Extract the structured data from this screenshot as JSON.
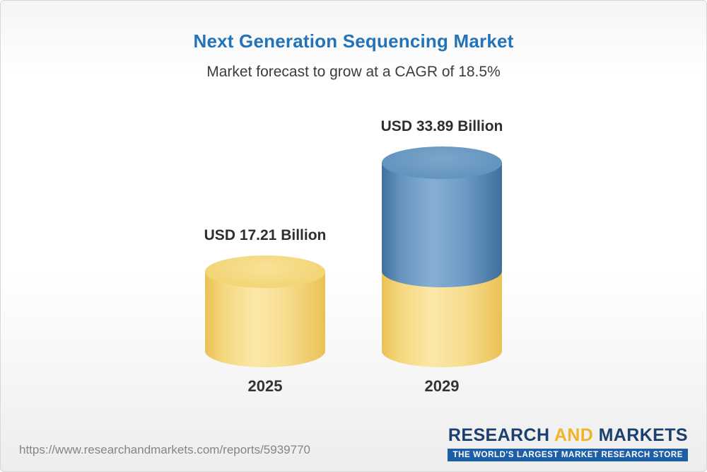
{
  "header": {
    "title": "Next Generation Sequencing Market",
    "subtitle": "Market forecast to grow at a CAGR of 18.5%"
  },
  "chart_data": {
    "type": "bar",
    "variant": "3d-cylinder",
    "categories": [
      "2025",
      "2029"
    ],
    "values": [
      17.21,
      33.89
    ],
    "value_labels": [
      "USD 17.21 Billion",
      "USD 33.89 Billion"
    ],
    "unit": "USD Billion",
    "cagr_pct": 18.5,
    "series_note": "2029 cylinder is stacked: yellow base equals 2025 value, blue top segment is forecast growth",
    "bar_colors": [
      "#f3d474",
      "#6193bd"
    ],
    "legend": "none",
    "grid": "off"
  },
  "footer": {
    "url": "https://www.researchandmarkets.com/reports/5939770",
    "logo": {
      "word1": "RESEARCH",
      "word2": "AND",
      "word3": "MARKETS",
      "tagline": "THE WORLD'S LARGEST MARKET RESEARCH STORE"
    }
  },
  "colors": {
    "title": "#2273b8",
    "yellow_top": "#f3d474",
    "yellow_top_light": "#f8e298",
    "yellow_mid": "#fbe7a9",
    "yellow_edge": "#eac156",
    "blue_top": "#6193bd",
    "blue_top_light": "#7ca6ca",
    "blue_mid": "#86afd3",
    "blue_edge": "#406f9d",
    "logo_navy": "#1b3f6e",
    "logo_gold": "#f0b429",
    "logo_tagline_bg": "#1d5fa6"
  }
}
